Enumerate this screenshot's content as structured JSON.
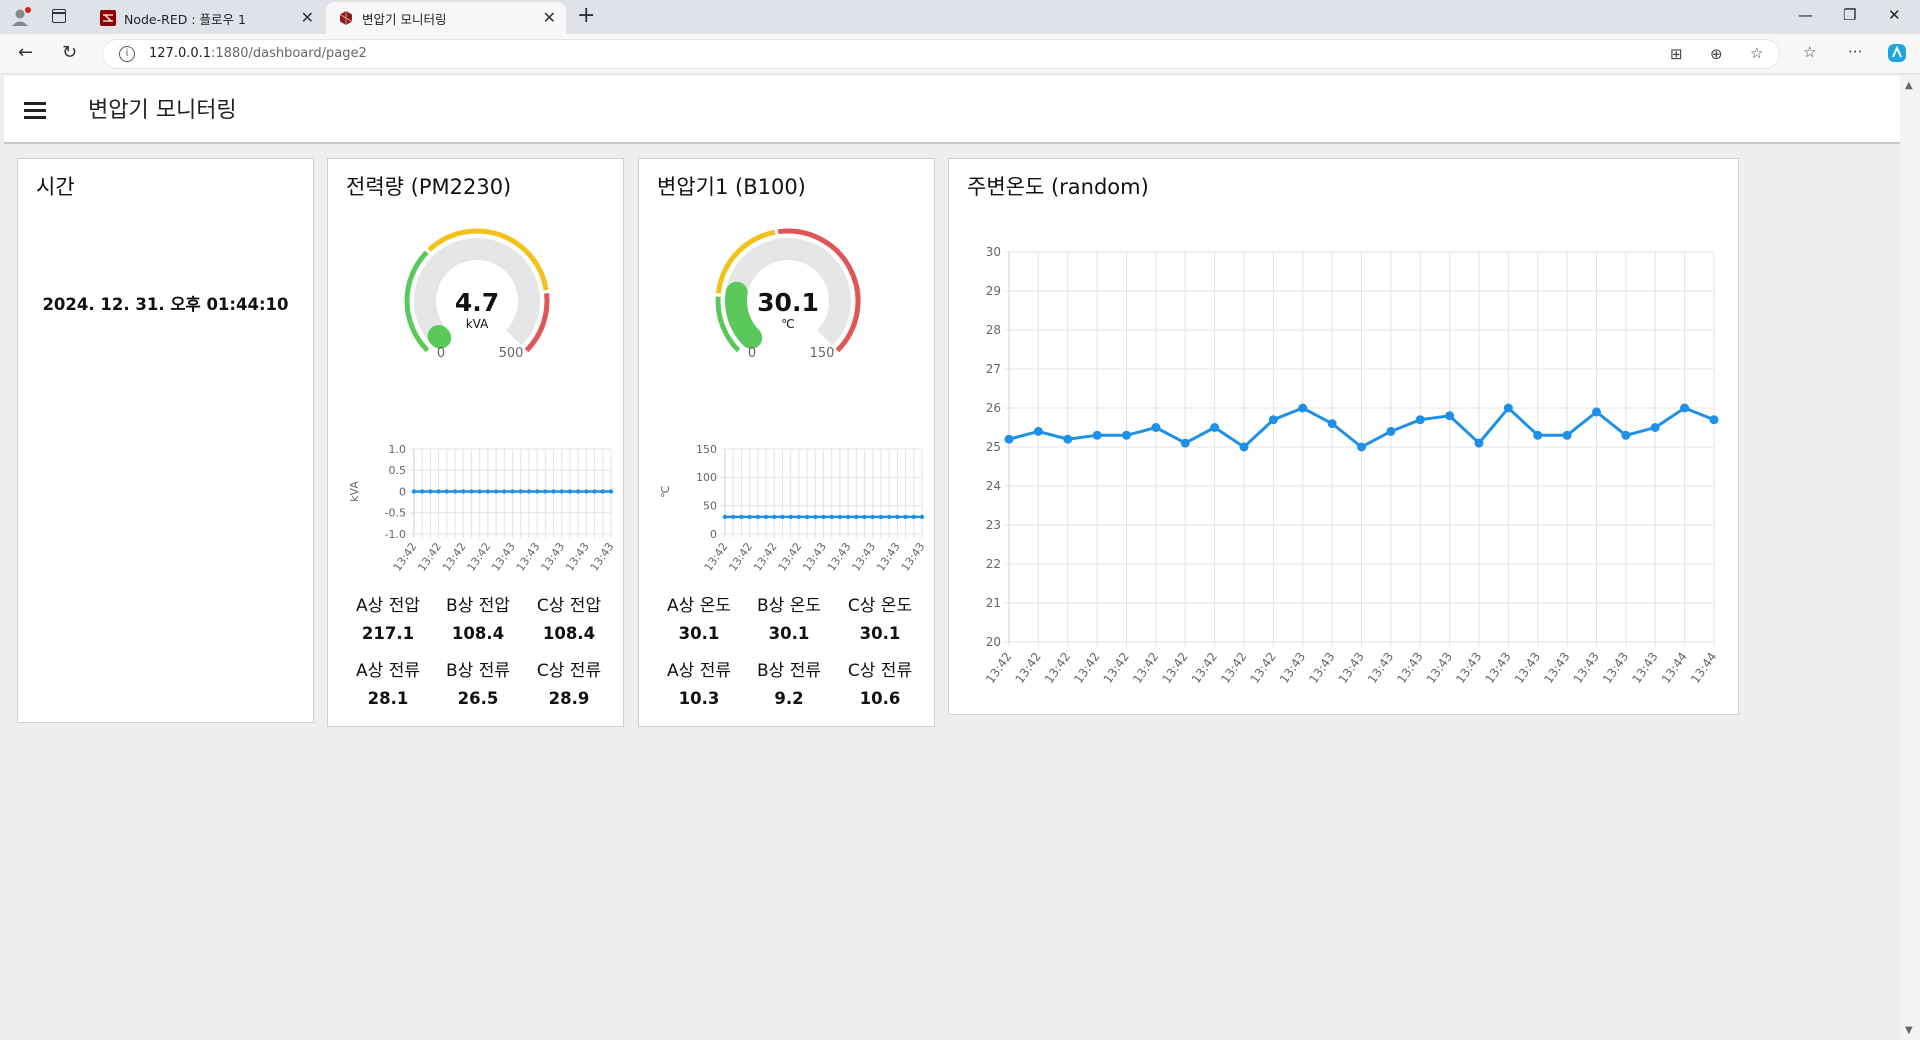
{
  "browser": {
    "tabs": [
      {
        "label": "Node-RED : 플로우 1",
        "active": false
      },
      {
        "label": "변압기 모니터링",
        "active": true
      }
    ],
    "url_host": "127.0.0.1",
    "url_path": ":1880/dashboard/page2"
  },
  "dashboard": {
    "title": "변압기 모니터링"
  },
  "time_card": {
    "title": "시간",
    "value": "2024. 12. 31. 오후 01:44:10"
  },
  "power_card": {
    "title": "전력량 (PM2230)",
    "gauge": {
      "value": "4.7",
      "unit": "kVA",
      "min": "0",
      "max": "500",
      "level": 0.0094
    },
    "chart_ylabel": "kVA",
    "chart_yticks": [
      "1.0",
      "0.5",
      "0",
      "-0.5",
      "-1.0"
    ],
    "chart_xticks": [
      "13:42",
      "13:42",
      "13:42",
      "13:42",
      "13:43",
      "13:43",
      "13:43",
      "13:43"
    ],
    "readings": [
      {
        "label": "A상 전압",
        "value": "217.1"
      },
      {
        "label": "B상 전압",
        "value": "108.4"
      },
      {
        "label": "C상 전압",
        "value": "108.4"
      },
      {
        "label": "A상 전류",
        "value": "28.1"
      },
      {
        "label": "B상 전류",
        "value": "26.5"
      },
      {
        "label": "C상 전류",
        "value": "28.9"
      }
    ]
  },
  "transformer_card": {
    "title": "변압기1 (B100)",
    "gauge": {
      "value": "30.1",
      "unit": "℃",
      "min": "0",
      "max": "150",
      "level": 0.2007
    },
    "chart_ylabel": "℃",
    "chart_yticks": [
      "150",
      "100",
      "50",
      "0"
    ],
    "chart_xticks": [
      "13:42",
      "13:42",
      "13:42",
      "13:42",
      "13:43",
      "13:43",
      "13:43",
      "13:43"
    ],
    "readings": [
      {
        "label": "A상 온도",
        "value": "30.1"
      },
      {
        "label": "B상 온도",
        "value": "30.1"
      },
      {
        "label": "C상 온도",
        "value": "30.1"
      },
      {
        "label": "A상 전류",
        "value": "10.3"
      },
      {
        "label": "B상 전류",
        "value": "9.2"
      },
      {
        "label": "C상 전류",
        "value": "10.6"
      }
    ]
  },
  "ambient_card": {
    "title": "주변온도 (random)"
  },
  "colors": {
    "series": "#1e90e8",
    "gauge_green": "#5ac85a",
    "gauge_yellow": "#f2c21b",
    "gauge_red": "#e05555",
    "gauge_track": "#e6e6e6"
  },
  "chart_data": [
    {
      "type": "line",
      "title": "전력량 (PM2230)",
      "ylabel": "kVA",
      "ylim": [
        -1.0,
        1.0
      ],
      "yticks": [
        1.0,
        0.5,
        0,
        -0.5,
        -1.0
      ],
      "x": [
        "13:42",
        "13:42",
        "13:42",
        "13:42",
        "13:42",
        "13:42",
        "13:42",
        "13:42",
        "13:42",
        "13:42",
        "13:42",
        "13:43",
        "13:43",
        "13:43",
        "13:43",
        "13:43",
        "13:43",
        "13:43",
        "13:43",
        "13:43",
        "13:43",
        "13:43",
        "13:43",
        "13:43",
        "13:43"
      ],
      "series": [
        {
          "values": [
            0,
            0,
            0,
            0,
            0,
            0,
            0,
            0,
            0,
            0,
            0,
            0,
            0,
            0,
            0,
            0,
            0,
            0,
            0,
            0,
            0,
            0,
            0,
            0,
            0
          ]
        }
      ]
    },
    {
      "type": "line",
      "title": "변압기1 (B100)",
      "ylabel": "℃",
      "ylim": [
        0,
        150
      ],
      "yticks": [
        150,
        100,
        50,
        0
      ],
      "x": [
        "13:42",
        "13:42",
        "13:42",
        "13:42",
        "13:42",
        "13:42",
        "13:42",
        "13:42",
        "13:42",
        "13:42",
        "13:42",
        "13:43",
        "13:43",
        "13:43",
        "13:43",
        "13:43",
        "13:43",
        "13:43",
        "13:43",
        "13:43",
        "13:43",
        "13:43",
        "13:43",
        "13:43",
        "13:43"
      ],
      "series": [
        {
          "values": [
            30.1,
            30.1,
            30.1,
            30.1,
            30.1,
            30.1,
            30.1,
            30.1,
            30.1,
            30.1,
            30.1,
            30.1,
            30.1,
            30.1,
            30.1,
            30.1,
            30.1,
            30.1,
            30.1,
            30.1,
            30.1,
            30.1,
            30.1,
            30.1,
            30.1
          ]
        }
      ]
    },
    {
      "type": "line",
      "title": "주변온도 (random)",
      "ylim": [
        20,
        30
      ],
      "yticks": [
        30,
        29,
        28,
        27,
        26,
        25,
        24,
        23,
        22,
        21,
        20
      ],
      "x": [
        "13:42",
        "13:42",
        "13:42",
        "13:42",
        "13:42",
        "13:42",
        "13:42",
        "13:42",
        "13:42",
        "13:42",
        "13:43",
        "13:43",
        "13:43",
        "13:43",
        "13:43",
        "13:43",
        "13:43",
        "13:43",
        "13:43",
        "13:43",
        "13:43",
        "13:43",
        "13:43",
        "13:44",
        "13:44"
      ],
      "series": [
        {
          "values": [
            25.2,
            25.4,
            25.2,
            25.3,
            25.3,
            25.5,
            25.1,
            25.5,
            25.0,
            25.7,
            26.0,
            25.6,
            25.0,
            25.4,
            25.7,
            25.8,
            25.1,
            26.0,
            25.3,
            25.3,
            25.9,
            25.3,
            25.5,
            26.0,
            25.7
          ]
        }
      ],
      "grid": true
    }
  ]
}
